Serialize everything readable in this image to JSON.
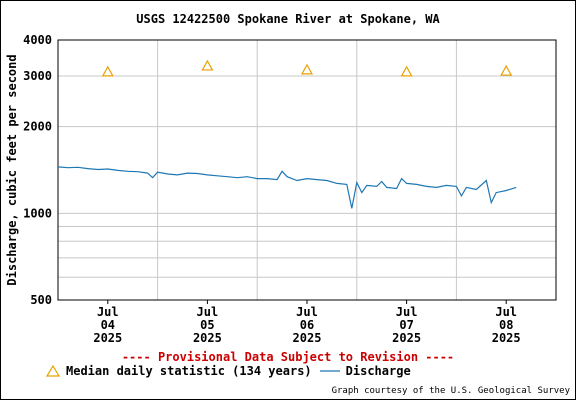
{
  "chart_data": {
    "type": "line",
    "title": "USGS 12422500 Spokane River at Spokane, WA",
    "ylabel": "Discharge, cubic feet per second",
    "xlabel": "",
    "yscale": "log",
    "ylim": [
      500,
      4000
    ],
    "y_ticks": [
      "500",
      "1000",
      "2000",
      "3000",
      "4000"
    ],
    "x_ticks": [
      {
        "month": "Jul",
        "day": "04",
        "year": "2025"
      },
      {
        "month": "Jul",
        "day": "05",
        "year": "2025"
      },
      {
        "month": "Jul",
        "day": "06",
        "year": "2025"
      },
      {
        "month": "Jul",
        "day": "07",
        "year": "2025"
      },
      {
        "month": "Jul",
        "day": "08",
        "year": "2025"
      }
    ],
    "grid": true,
    "series": [
      {
        "name": "Discharge",
        "color": "#1f77b4",
        "x_days": [
          3.5,
          3.6,
          3.7,
          3.8,
          3.9,
          4.0,
          4.1,
          4.2,
          4.3,
          4.4,
          4.45,
          4.5,
          4.6,
          4.7,
          4.8,
          4.9,
          5.0,
          5.1,
          5.2,
          5.3,
          5.4,
          5.5,
          5.6,
          5.7,
          5.75,
          5.8,
          5.9,
          6.0,
          6.1,
          6.2,
          6.3,
          6.4,
          6.45,
          6.5,
          6.55,
          6.6,
          6.7,
          6.75,
          6.8,
          6.9,
          6.95,
          7.0,
          7.1,
          7.2,
          7.3,
          7.4,
          7.5,
          7.55,
          7.6,
          7.7,
          7.8,
          7.85,
          7.9,
          8.0,
          8.1
        ],
        "values": [
          1450,
          1440,
          1445,
          1430,
          1420,
          1425,
          1410,
          1400,
          1395,
          1380,
          1330,
          1390,
          1370,
          1360,
          1380,
          1375,
          1360,
          1350,
          1340,
          1330,
          1340,
          1320,
          1320,
          1310,
          1400,
          1340,
          1300,
          1320,
          1310,
          1300,
          1270,
          1260,
          1040,
          1280,
          1180,
          1250,
          1240,
          1290,
          1230,
          1220,
          1320,
          1270,
          1260,
          1240,
          1230,
          1250,
          1240,
          1150,
          1230,
          1210,
          1300,
          1090,
          1180,
          1200,
          1230
        ]
      },
      {
        "name": "Median daily statistic (134 years)",
        "type": "scatter",
        "marker": "triangle",
        "color": "#e8a000",
        "x_days": [
          4.0,
          5.0,
          6.0,
          7.0,
          8.0
        ],
        "values": [
          3100,
          3250,
          3150,
          3100,
          3120
        ]
      }
    ],
    "legend": [
      {
        "label": "Median daily statistic (134 years)",
        "marker": "triangle"
      },
      {
        "label": "Discharge",
        "marker": "line"
      }
    ],
    "annotation": "---- Provisional Data Subject to Revision ----",
    "annotation_color": "#cc0000",
    "credit": "Graph courtesy of the U.S. Geological Survey"
  }
}
